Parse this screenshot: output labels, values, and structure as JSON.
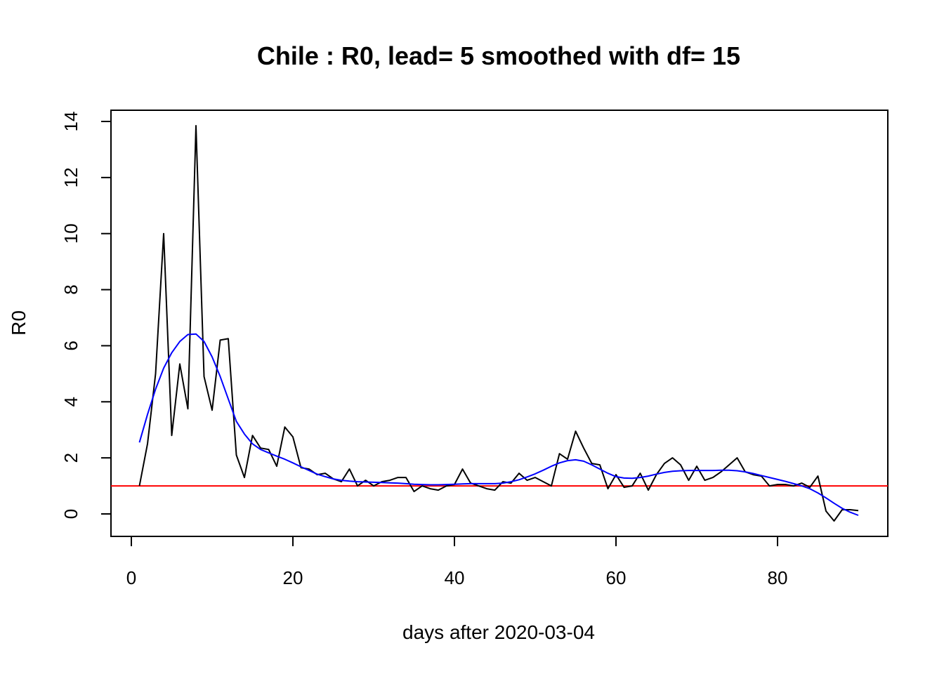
{
  "chart_data": {
    "type": "line",
    "title": "Chile : R0, lead= 5  smoothed with df= 15",
    "xlabel": "days after  2020-03-04",
    "ylabel": "R0",
    "xlim": [
      0,
      93
    ],
    "ylim": [
      -0.8,
      14.4
    ],
    "xticks": [
      0,
      20,
      40,
      60,
      80
    ],
    "yticks": [
      0,
      2,
      4,
      6,
      8,
      10,
      12,
      14
    ],
    "grid": false,
    "legend": "none",
    "reference_line": {
      "y": 1,
      "color": "#ff0000"
    },
    "series": [
      {
        "color": "#000000",
        "x": [
          1,
          2,
          3,
          4,
          5,
          6,
          7,
          8,
          9,
          10,
          11,
          12,
          13,
          14,
          15,
          16,
          17,
          18,
          19,
          20,
          21,
          22,
          23,
          24,
          25,
          26,
          27,
          28,
          29,
          30,
          31,
          32,
          33,
          34,
          35,
          36,
          37,
          38,
          39,
          40,
          41,
          42,
          43,
          44,
          45,
          46,
          47,
          48,
          49,
          50,
          51,
          52,
          53,
          54,
          55,
          56,
          57,
          58,
          59,
          60,
          61,
          62,
          63,
          64,
          65,
          66,
          67,
          68,
          69,
          70,
          71,
          72,
          73,
          74,
          75,
          76,
          77,
          78,
          79,
          80,
          81,
          82,
          83,
          84,
          85,
          86,
          87,
          88,
          89,
          90
        ],
        "values": [
          1.0,
          2.5,
          5.0,
          10.0,
          2.8,
          5.35,
          3.75,
          13.85,
          4.9,
          3.7,
          6.2,
          6.25,
          2.1,
          1.3,
          2.8,
          2.35,
          2.3,
          1.7,
          3.1,
          2.75,
          1.65,
          1.6,
          1.4,
          1.45,
          1.25,
          1.15,
          1.6,
          1.0,
          1.2,
          1.0,
          1.15,
          1.2,
          1.3,
          1.3,
          0.8,
          1.0,
          0.9,
          0.85,
          1.0,
          1.05,
          1.6,
          1.1,
          1.0,
          0.9,
          0.85,
          1.15,
          1.1,
          1.45,
          1.2,
          1.3,
          1.15,
          1.0,
          2.15,
          1.95,
          2.95,
          2.35,
          1.8,
          1.75,
          0.9,
          1.4,
          0.95,
          1.0,
          1.45,
          0.85,
          1.4,
          1.8,
          2.0,
          1.75,
          1.2,
          1.7,
          1.2,
          1.3,
          1.5,
          1.75,
          2.0,
          1.5,
          1.4,
          1.35,
          1.0,
          1.05,
          1.05,
          1.0,
          1.1,
          0.95,
          1.35,
          0.1,
          -0.25,
          0.15,
          0.15,
          0.12
        ]
      },
      {
        "color": "#0000ff",
        "x": [
          1,
          2,
          3,
          4,
          5,
          6,
          7,
          8,
          9,
          10,
          11,
          12,
          13,
          14,
          15,
          16,
          17,
          18,
          19,
          20,
          21,
          22,
          23,
          24,
          25,
          26,
          27,
          28,
          29,
          30,
          31,
          32,
          33,
          34,
          35,
          36,
          37,
          38,
          39,
          40,
          41,
          42,
          43,
          44,
          45,
          46,
          47,
          48,
          49,
          50,
          51,
          52,
          53,
          54,
          55,
          56,
          57,
          58,
          59,
          60,
          61,
          62,
          63,
          64,
          65,
          66,
          67,
          68,
          69,
          70,
          71,
          72,
          73,
          74,
          75,
          76,
          77,
          78,
          79,
          80,
          81,
          82,
          83,
          84,
          85,
          86,
          87,
          88,
          89,
          90
        ],
        "values": [
          2.55,
          3.55,
          4.45,
          5.2,
          5.75,
          6.15,
          6.4,
          6.42,
          6.15,
          5.6,
          4.9,
          4.1,
          3.3,
          2.85,
          2.5,
          2.3,
          2.18,
          2.06,
          1.95,
          1.82,
          1.68,
          1.55,
          1.42,
          1.33,
          1.25,
          1.2,
          1.17,
          1.15,
          1.14,
          1.13,
          1.12,
          1.11,
          1.1,
          1.08,
          1.06,
          1.05,
          1.04,
          1.04,
          1.05,
          1.06,
          1.07,
          1.08,
          1.08,
          1.08,
          1.08,
          1.1,
          1.15,
          1.22,
          1.32,
          1.43,
          1.56,
          1.7,
          1.82,
          1.9,
          1.93,
          1.88,
          1.75,
          1.6,
          1.45,
          1.33,
          1.28,
          1.27,
          1.3,
          1.35,
          1.42,
          1.48,
          1.52,
          1.54,
          1.55,
          1.55,
          1.55,
          1.55,
          1.56,
          1.56,
          1.54,
          1.5,
          1.44,
          1.37,
          1.3,
          1.23,
          1.16,
          1.08,
          1.0,
          0.9,
          0.75,
          0.57,
          0.38,
          0.2,
          0.06,
          -0.05
        ]
      }
    ]
  }
}
